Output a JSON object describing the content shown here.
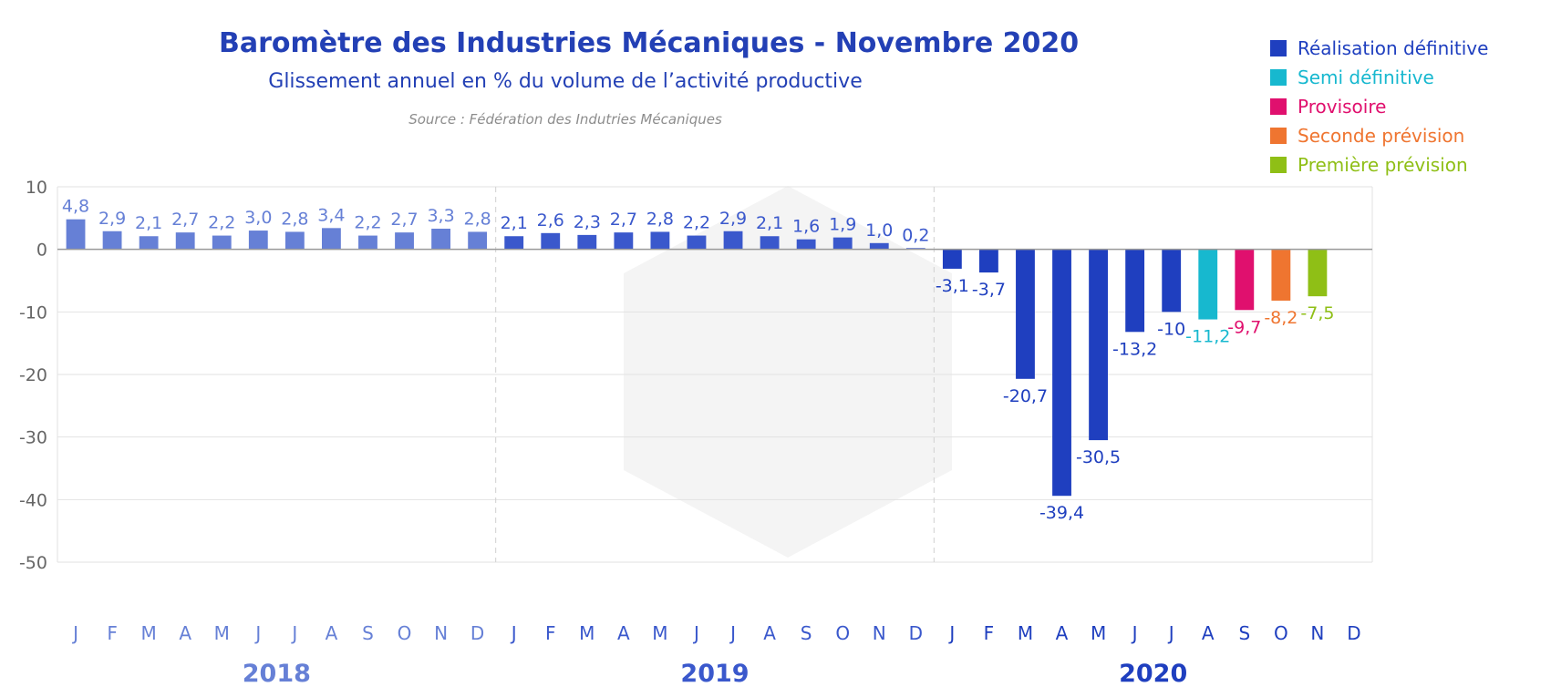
{
  "header": {
    "title": "Baromètre des Industries Mécaniques - Novembre 2020",
    "subtitle": "Glissement annuel en % du volume de l’activité productive",
    "source": "Source : Fédération des Indutries Mécaniques"
  },
  "colors": {
    "realisation": "#1f3fbf",
    "realisation_2018": "#6680d6",
    "realisation_2019": "#3a58cc",
    "semi": "#17b8cf",
    "provisoire": "#e0106e",
    "seconde": "#ef7530",
    "premiere": "#8fbf16",
    "grid": "#e2e2e2",
    "axis_text": "#666666",
    "zero_line": "#999999"
  },
  "legend": [
    {
      "label": "Réalisation définitive",
      "color": "#1f3fbf"
    },
    {
      "label": "Semi définitive",
      "color": "#17b8cf"
    },
    {
      "label": "Provisoire",
      "color": "#e0106e"
    },
    {
      "label": "Seconde prévision",
      "color": "#ef7530"
    },
    {
      "label": "Première prévision",
      "color": "#8fbf16"
    }
  ],
  "chart_data": {
    "type": "bar",
    "title": "Baromètre des Industries Mécaniques - Novembre 2020",
    "subtitle": "Glissement annuel en % du volume de l’activité productive",
    "ylim": [
      -50,
      10
    ],
    "yticks": [
      10,
      0,
      -10,
      -20,
      -30,
      -40,
      -50
    ],
    "grid": true,
    "legend_position": "top-right",
    "years": [
      {
        "label": "2018",
        "color": "#6680d6",
        "months": [
          "J",
          "F",
          "M",
          "A",
          "M",
          "J",
          "J",
          "A",
          "S",
          "O",
          "N",
          "D"
        ],
        "values": [
          4.8,
          2.9,
          2.1,
          2.7,
          2.2,
          3.0,
          2.8,
          3.4,
          2.2,
          2.7,
          3.3,
          2.8
        ],
        "labels": [
          "4,8",
          "2,9",
          "2,1",
          "2,7",
          "2,2",
          "3,0",
          "2,8",
          "3,4",
          "2,2",
          "2,7",
          "3,3",
          "2,8"
        ],
        "status": [
          "realisation",
          "realisation",
          "realisation",
          "realisation",
          "realisation",
          "realisation",
          "realisation",
          "realisation",
          "realisation",
          "realisation",
          "realisation",
          "realisation"
        ]
      },
      {
        "label": "2019",
        "color": "#3a58cc",
        "months": [
          "J",
          "F",
          "M",
          "A",
          "M",
          "J",
          "J",
          "A",
          "S",
          "O",
          "N",
          "D"
        ],
        "values": [
          2.1,
          2.6,
          2.3,
          2.7,
          2.8,
          2.2,
          2.9,
          2.1,
          1.6,
          1.9,
          1.0,
          0.2
        ],
        "labels": [
          "2,1",
          "2,6",
          "2,3",
          "2,7",
          "2,8",
          "2,2",
          "2,9",
          "2,1",
          "1,6",
          "1,9",
          "1,0",
          "0,2"
        ],
        "status": [
          "realisation",
          "realisation",
          "realisation",
          "realisation",
          "realisation",
          "realisation",
          "realisation",
          "realisation",
          "realisation",
          "realisation",
          "realisation",
          "realisation"
        ]
      },
      {
        "label": "2020",
        "color": "#1f3fbf",
        "months": [
          "J",
          "F",
          "M",
          "A",
          "M",
          "J",
          "J",
          "A",
          "S",
          "O",
          "N",
          "D"
        ],
        "values": [
          -3.1,
          -3.7,
          -20.7,
          -39.4,
          -30.5,
          -13.2,
          -10,
          -11.2,
          -9.7,
          -8.2,
          -7.5,
          null
        ],
        "labels": [
          "-3,1",
          "-3,7",
          "-20,7",
          "-39,4",
          "-30,5",
          "-13,2",
          "-10",
          "-11,2",
          "-9,7",
          "-8,2",
          "-7,5",
          ""
        ],
        "status": [
          "realisation",
          "realisation",
          "realisation",
          "realisation",
          "realisation",
          "realisation",
          "realisation",
          "semi",
          "provisoire",
          "seconde",
          "premiere",
          null
        ]
      }
    ]
  }
}
